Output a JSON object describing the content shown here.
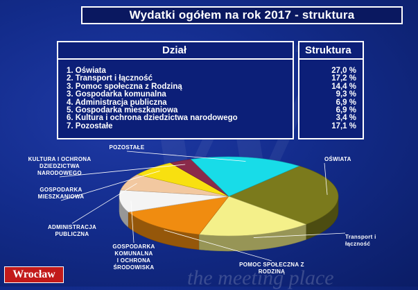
{
  "title": "Wydatki ogółem na rok 2017 - struktura",
  "table": {
    "col1_header": "Dział",
    "col2_header": "Struktura",
    "rows": [
      {
        "name": "1. Oświata",
        "value": "27,0 %"
      },
      {
        "name": "2. Transport i łączność",
        "value": "17,2 %"
      },
      {
        "name": "3. Pomoc społeczna  z Rodziną",
        "value": "14,4 %"
      },
      {
        "name": "3. Gospodarka komunalna",
        "value": "9,3 %"
      },
      {
        "name": "4. Administracja publiczna",
        "value": "6,9 %"
      },
      {
        "name": "5. Gospodarka mieszkaniowa",
        "value": "6,9 %"
      },
      {
        "name": "6. Kultura i ochrona dziedzictwa  narodowego",
        "value": "3,4 %"
      },
      {
        "name": "7. Pozostałe",
        "value": "17,1 %"
      }
    ]
  },
  "chart_data": {
    "type": "pie",
    "title": "Wydatki ogółem na rok 2017 - struktura",
    "slices": [
      {
        "label": [
          "OŚWIATA"
        ],
        "value": 27.0,
        "color": "#7b7a1c"
      },
      {
        "label": [
          "Transport i",
          "łączność"
        ],
        "value": 17.2,
        "color": "#f4f08a"
      },
      {
        "label": [
          "POMOC SPOŁECZNA  Z",
          "RODZINĄ"
        ],
        "value": 14.4,
        "color": "#f08c10"
      },
      {
        "label": [
          "GOSPODARKA",
          "KOMUNALNA",
          "I OCHRONA",
          "ŚRODOWISKA"
        ],
        "value": 9.3,
        "color": "#f4f4f4"
      },
      {
        "label": [
          "ADMINISTRACJA",
          "PUBLICZNA"
        ],
        "value": 6.9,
        "color": "#f2c8a0"
      },
      {
        "label": [
          "GOSPODARKA",
          "MIESZKANIOWA"
        ],
        "value": 6.9,
        "color": "#f8e010"
      },
      {
        "label": [
          "KULTURA I OCHRONA",
          "DZIEDZICTWA",
          "NARODOWEGO"
        ],
        "value": 3.4,
        "color": "#8a2a4a"
      },
      {
        "label": [
          "POZOSTAŁE"
        ],
        "value": 17.1,
        "color": "#18dce8"
      }
    ]
  },
  "footer": {
    "logo": "Wrocław",
    "slogan": "the meeting place"
  }
}
